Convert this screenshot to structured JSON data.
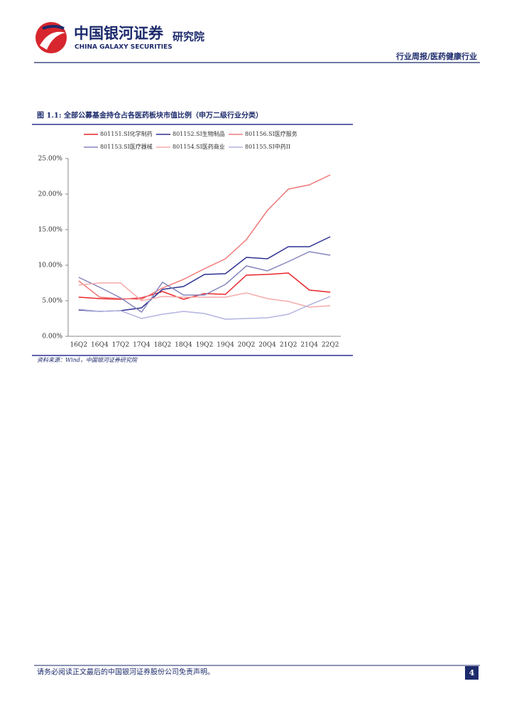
{
  "header": {
    "brand_cn": "中国银河证券",
    "institute": "研究院",
    "brand_en": "CHINA GALAXY SECURITIES",
    "report_type": "行业周报/医药健康行业"
  },
  "figure": {
    "caption": "图 1.1: 全部公募基金持仓占各医药板块市值比例（申万二级行业分类）",
    "source": "资料来源：Wind，中国银河证券研究院"
  },
  "chart_data": {
    "type": "line",
    "categories": [
      "16Q2",
      "16Q4",
      "17Q2",
      "17Q4",
      "18Q2",
      "18Q4",
      "19Q2",
      "19Q4",
      "20Q2",
      "20Q4",
      "21Q2",
      "21Q4",
      "22Q2"
    ],
    "ylim": [
      0,
      25
    ],
    "yticks": [
      {
        "value": 0,
        "label": "0.00%"
      },
      {
        "value": 5,
        "label": "5.00%"
      },
      {
        "value": 10,
        "label": "10.00%"
      },
      {
        "value": 15,
        "label": "15.00%"
      },
      {
        "value": 20,
        "label": "20.00%"
      },
      {
        "value": 25,
        "label": "25.00%"
      }
    ],
    "legend": "top",
    "series": [
      {
        "name": "801151.SI化学制药",
        "color": "#e8262c",
        "values": [
          5.5,
          5.3,
          5.2,
          5.4,
          6.3,
          5.2,
          6.0,
          5.9,
          8.6,
          8.7,
          8.9,
          6.5,
          6.2
        ]
      },
      {
        "name": "801152.SI生物制品",
        "color": "#2e3192",
        "values": [
          3.7,
          3.5,
          3.6,
          4.0,
          6.6,
          7.0,
          8.7,
          8.8,
          11.1,
          10.9,
          12.6,
          12.6,
          14.0
        ]
      },
      {
        "name": "801156.SI医疗服务",
        "color": "#f07a7a",
        "values": [
          7.8,
          5.5,
          5.3,
          5.2,
          6.8,
          8.0,
          9.5,
          10.9,
          13.6,
          17.7,
          20.7,
          21.3,
          22.7
        ]
      },
      {
        "name": "801153.SI医疗器械",
        "color": "#8585bd",
        "values": [
          8.3,
          6.9,
          5.4,
          3.4,
          7.6,
          5.8,
          5.8,
          7.3,
          9.9,
          9.2,
          10.5,
          11.9,
          11.4
        ]
      },
      {
        "name": "801154.SI医药商业",
        "color": "#f5aaaa",
        "values": [
          7.2,
          7.5,
          7.5,
          5.0,
          5.6,
          5.5,
          5.5,
          5.5,
          6.1,
          5.3,
          4.9,
          4.1,
          4.3
        ]
      },
      {
        "name": "801155.SI中药II",
        "color": "#b4b4e0",
        "values": [
          3.8,
          3.5,
          3.6,
          2.5,
          3.1,
          3.5,
          3.2,
          2.4,
          2.5,
          2.6,
          3.1,
          4.4,
          5.6
        ]
      }
    ]
  },
  "footer": {
    "disclaimer": "请务必阅读正文最后的中国银河证券股份公司免责声明。",
    "page_number": "4"
  }
}
